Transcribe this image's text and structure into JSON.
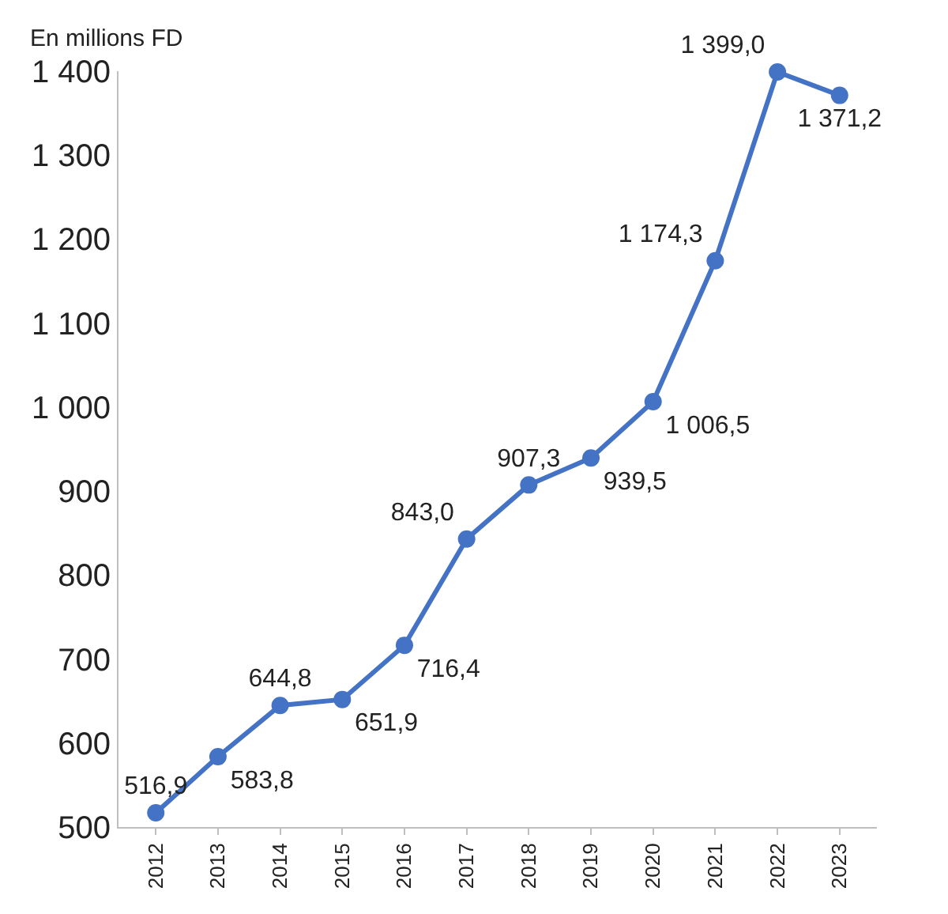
{
  "chart_data": {
    "type": "line",
    "ylabel": "En millions FD",
    "categories": [
      "2012",
      "2013",
      "2014",
      "2015",
      "2016",
      "2017",
      "2018",
      "2019",
      "2020",
      "2021",
      "2022",
      "2023"
    ],
    "series": [
      {
        "color": "#4472c4",
        "values": [
          516.9,
          583.8,
          644.8,
          651.9,
          716.4,
          843.0,
          907.3,
          939.5,
          1006.5,
          1174.3,
          1399.0,
          1371.2
        ],
        "value_labels": [
          "516,9",
          "583,8",
          "644,8",
          "651,9",
          "716,4",
          "843,0",
          "907,3",
          "939,5",
          "1 006,5",
          "1 174,3",
          "1 399,0",
          "1 371,2"
        ]
      }
    ],
    "ylim": [
      500,
      1400
    ],
    "yticks": [
      500,
      600,
      700,
      800,
      900,
      {
        "value": 1000,
        "label": "1 000"
      },
      {
        "value": 1100,
        "label": "1 100"
      },
      {
        "value": 1200,
        "label": "1 200"
      },
      {
        "value": 1300,
        "label": "1 300"
      },
      {
        "value": 1400,
        "label": "1 400"
      }
    ],
    "marker": "circle",
    "line_style": "solid"
  }
}
